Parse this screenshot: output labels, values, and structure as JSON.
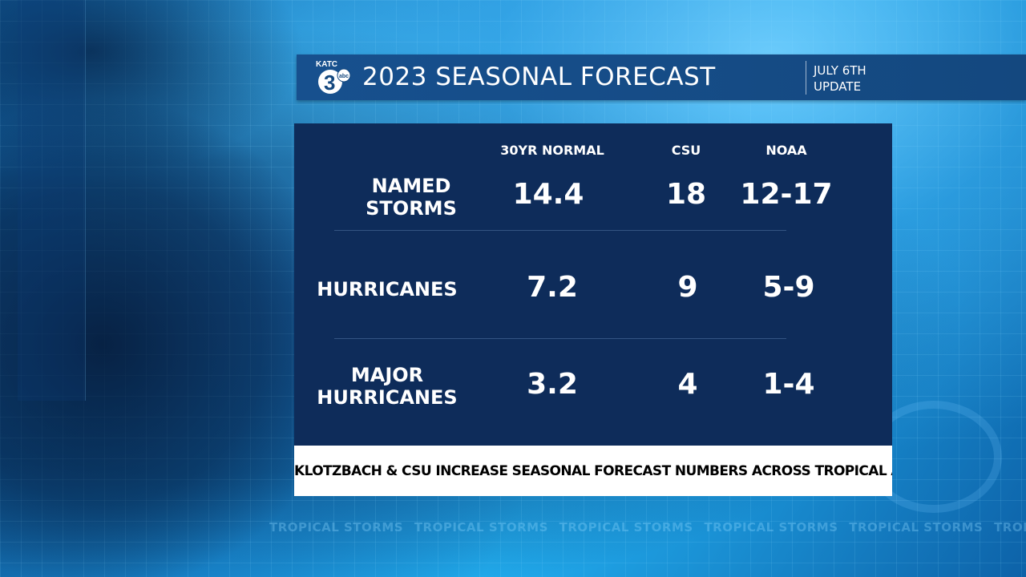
{
  "header": {
    "logo_text": "KATC",
    "logo_number": "3",
    "logo_network": "abc",
    "title": "2023 SEASONAL FORECAST",
    "date_line1": "JULY 6TH",
    "date_line2": "UPDATE"
  },
  "table": {
    "columns": [
      "30YR NORMAL",
      "CSU",
      "NOAA"
    ],
    "rows": [
      {
        "label_line1": "NAMED",
        "label_line2": "STORMS",
        "values": [
          "14.4",
          "18",
          "12-17"
        ]
      },
      {
        "label_line1": "HURRICANES",
        "label_line2": "",
        "values": [
          "7.2",
          "9",
          "5-9"
        ]
      },
      {
        "label_line1": "MAJOR",
        "label_line2": "HURRICANES",
        "values": [
          "3.2",
          "4",
          "1-4"
        ]
      }
    ]
  },
  "footer": {
    "text": "KLOTZBACH & CSU INCREASE SEASONAL FORECAST NUMBERS ACROSS TROPICAL ATLANTIC"
  },
  "background": {
    "ticker_text": "TROPICAL STORMS"
  },
  "colors": {
    "header_bg": "#17508e",
    "table_bg": "#0e2c5a",
    "footer_bg": "#ffffff",
    "text": "#ffffff"
  }
}
